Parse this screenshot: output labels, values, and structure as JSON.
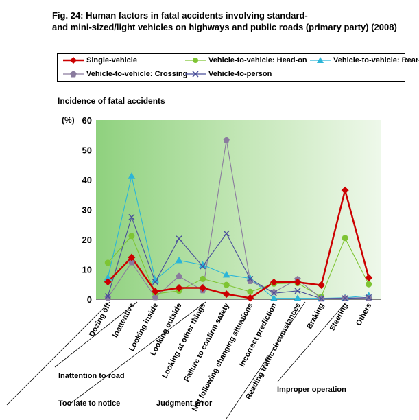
{
  "title_lines": [
    "Fig. 24: Human factors in fatal accidents involving standard-",
    "and mini-sized/light vehicles on highways and public roads (primary party) (2008)"
  ],
  "chart_data": {
    "type": "line",
    "ylabel": "Incidence of fatal accidents",
    "yunit": "(%)",
    "ylim": [
      0,
      60
    ],
    "yticks": [
      0,
      10,
      20,
      30,
      40,
      50,
      60
    ],
    "grid": false,
    "legend": "top",
    "categories": [
      "Dozing off",
      "Inattentive",
      "Looking inside",
      "Looking outside",
      "Looking at other things",
      "Failure to confirm safety",
      "Not following changing situations",
      "Incorrect prediction",
      "Reading traffic circumstances",
      "Braking",
      "Steering",
      "Others"
    ],
    "series": [
      {
        "name": "Single-vehicle",
        "color": "#cc0000",
        "marker": "diamond",
        "values": [
          5.8,
          14.0,
          2.6,
          3.8,
          3.8,
          1.7,
          0.4,
          5.7,
          5.7,
          4.7,
          36.5,
          7.2
        ]
      },
      {
        "name": "Vehicle-to-vehicle: Head-on",
        "color": "#7ec433",
        "marker": "circle",
        "values": [
          12.2,
          21.2,
          1.8,
          2.8,
          6.8,
          4.8,
          2.5,
          5.2,
          5.4,
          0.8,
          20.5,
          5.0
        ]
      },
      {
        "name": "Vehicle-to-vehicle: Rear-end",
        "color": "#2bb5d8",
        "marker": "triangle",
        "values": [
          7.2,
          41.2,
          6.5,
          13.0,
          11.5,
          8.2,
          7.0,
          0.3,
          0.3,
          0.3,
          0.5,
          1.2
        ]
      },
      {
        "name": "Vehicle-to-vehicle: Crossing",
        "color": "#8a7b9e",
        "marker": "pentagon",
        "values": [
          0.5,
          12.3,
          0.6,
          7.7,
          2.9,
          53.3,
          6.0,
          2.4,
          6.7,
          0.2,
          0.4,
          0.3
        ]
      },
      {
        "name": "Vehicle-to-person",
        "color": "#4a4f9a",
        "marker": "x",
        "values": [
          1.0,
          27.5,
          5.8,
          20.3,
          11.0,
          22.0,
          6.8,
          2.0,
          2.8,
          0.2,
          0.3,
          0.6
        ]
      }
    ],
    "groups": [
      {
        "label": "Inattention to road"
      },
      {
        "label": "Too late to notice"
      },
      {
        "label": "Judgment error"
      },
      {
        "label": "Improper operation"
      }
    ]
  }
}
